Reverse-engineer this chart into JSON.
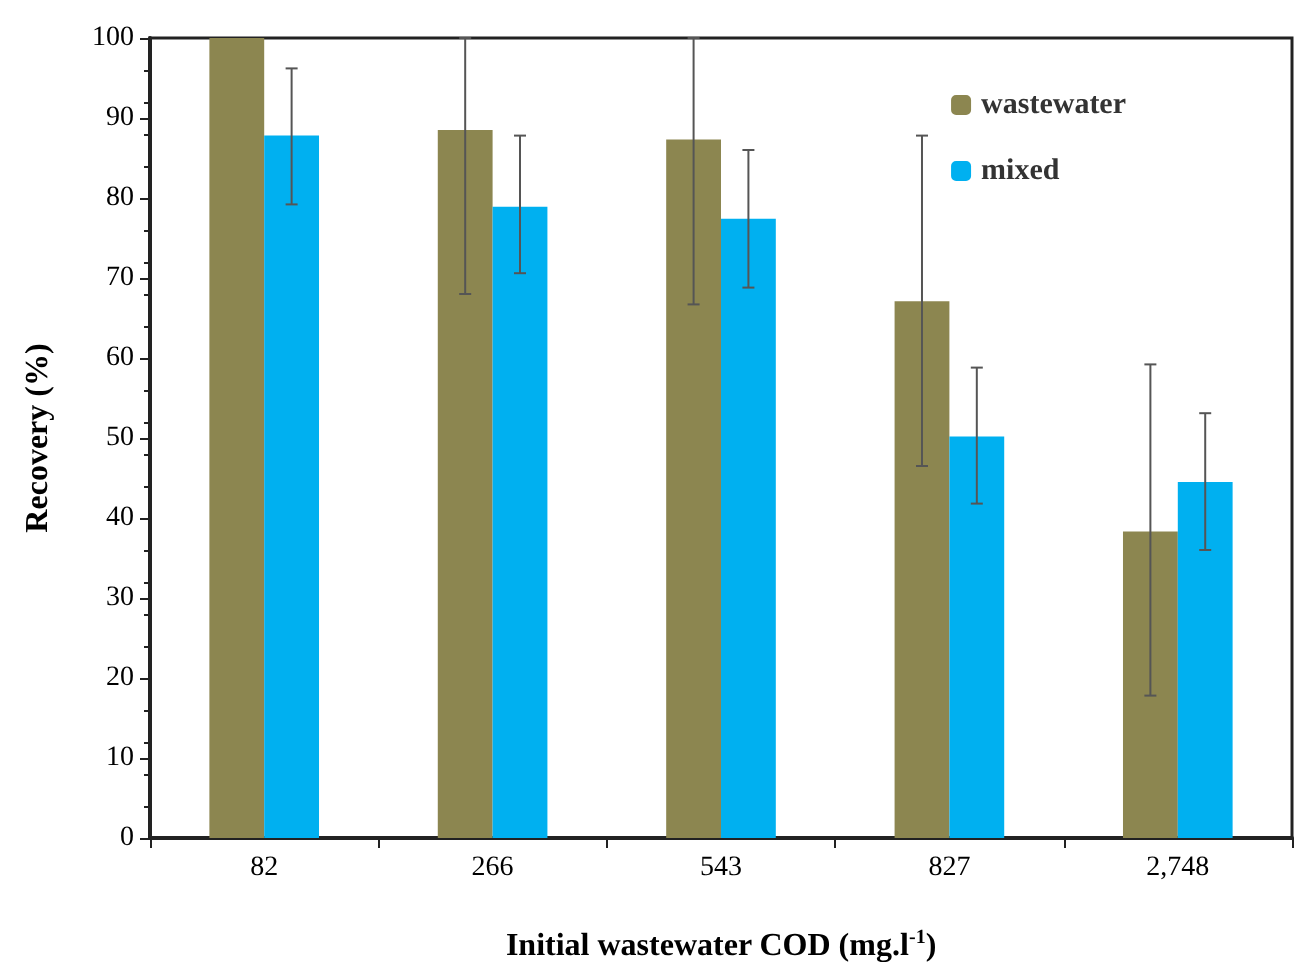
{
  "chart_data": {
    "type": "bar",
    "xlabel": "Initial wastewater COD (mg.l$^{-1}$)",
    "ylabel": "Recovery (%)",
    "categories": [
      "82",
      "266",
      "543",
      "827",
      "2,748"
    ],
    "series": [
      {
        "name": "wastewater",
        "color": "#8c8650",
        "values": [
          100,
          88.5,
          87.3,
          67.1,
          38.3
        ],
        "errors": [
          null,
          [
            68,
            100
          ],
          [
            66.7,
            100
          ],
          [
            46.5,
            87.8
          ],
          [
            17.8,
            59.2
          ]
        ]
      },
      {
        "name": "mixed",
        "color": "#00b0f0",
        "values": [
          87.8,
          78.9,
          77.4,
          50.2,
          44.5
        ],
        "errors": [
          [
            79.2,
            96.2
          ],
          [
            70.6,
            87.8
          ],
          [
            68.8,
            86
          ],
          [
            41.8,
            58.8
          ],
          [
            36,
            53.1
          ]
        ]
      }
    ],
    "ylim": [
      0,
      100
    ],
    "yticks": [
      0,
      10,
      20,
      30,
      40,
      50,
      60,
      70,
      80,
      90,
      100
    ],
    "grid": false,
    "legend": "top right"
  }
}
